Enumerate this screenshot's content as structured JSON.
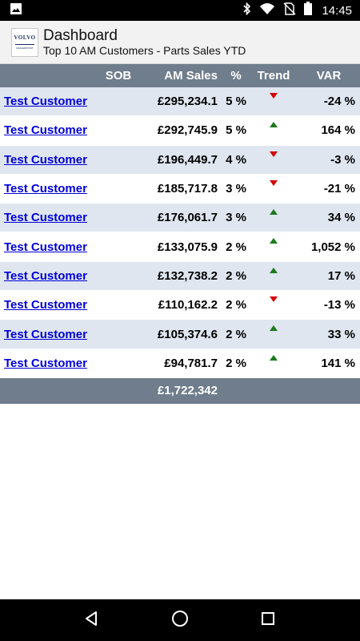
{
  "status_bar": {
    "time": "14:45",
    "icons": [
      "image-icon",
      "bluetooth-icon",
      "wifi-icon",
      "no-sim-icon",
      "battery-icon"
    ]
  },
  "header": {
    "logo_brand": "VOLVO",
    "logo_sub": "DEALERPOINT",
    "title": "Dashboard",
    "subtitle": "Top 10 AM Customers - Parts Sales YTD"
  },
  "table": {
    "columns": {
      "customer": "",
      "sob": "SOB",
      "am_sales": "AM Sales",
      "pct": "%",
      "trend": "Trend",
      "var": "VAR"
    },
    "rows": [
      {
        "customer": "Test Customer",
        "sob": "",
        "am_sales": "£295,234.1",
        "pct": "5 %",
        "trend": "down",
        "var": "-24 %"
      },
      {
        "customer": "Test Customer",
        "sob": "",
        "am_sales": "£292,745.9",
        "pct": "5 %",
        "trend": "up",
        "var": "164 %"
      },
      {
        "customer": "Test Customer",
        "sob": "",
        "am_sales": "£196,449.7",
        "pct": "4 %",
        "trend": "down",
        "var": "-3 %"
      },
      {
        "customer": "Test Customer",
        "sob": "",
        "am_sales": "£185,717.8",
        "pct": "3 %",
        "trend": "down",
        "var": "-21 %"
      },
      {
        "customer": "Test Customer",
        "sob": "",
        "am_sales": "£176,061.7",
        "pct": "3 %",
        "trend": "up",
        "var": "34 %"
      },
      {
        "customer": "Test Customer",
        "sob": "",
        "am_sales": "£133,075.9",
        "pct": "2 %",
        "trend": "up",
        "var": "1,052 %"
      },
      {
        "customer": "Test Customer",
        "sob": "",
        "am_sales": "£132,738.2",
        "pct": "2 %",
        "trend": "up",
        "var": "17 %"
      },
      {
        "customer": "Test Customer",
        "sob": "",
        "am_sales": "£110,162.2",
        "pct": "2 %",
        "trend": "down",
        "var": "-13 %"
      },
      {
        "customer": "Test Customer",
        "sob": "",
        "am_sales": "£105,374.6",
        "pct": "2 %",
        "trend": "up",
        "var": "33 %"
      },
      {
        "customer": "Test Customer",
        "sob": "",
        "am_sales": "£94,781.7",
        "pct": "2 %",
        "trend": "up",
        "var": "141 %"
      }
    ],
    "total_sales": "£1,722,342"
  },
  "colors": {
    "header_bar": "#6f7d8c",
    "row_alt": "#dfe6f0",
    "link": "#0000d8",
    "trend_up": "#1a7a1a",
    "trend_down": "#d40000"
  },
  "nav": [
    "back-icon",
    "home-icon",
    "recents-icon"
  ]
}
